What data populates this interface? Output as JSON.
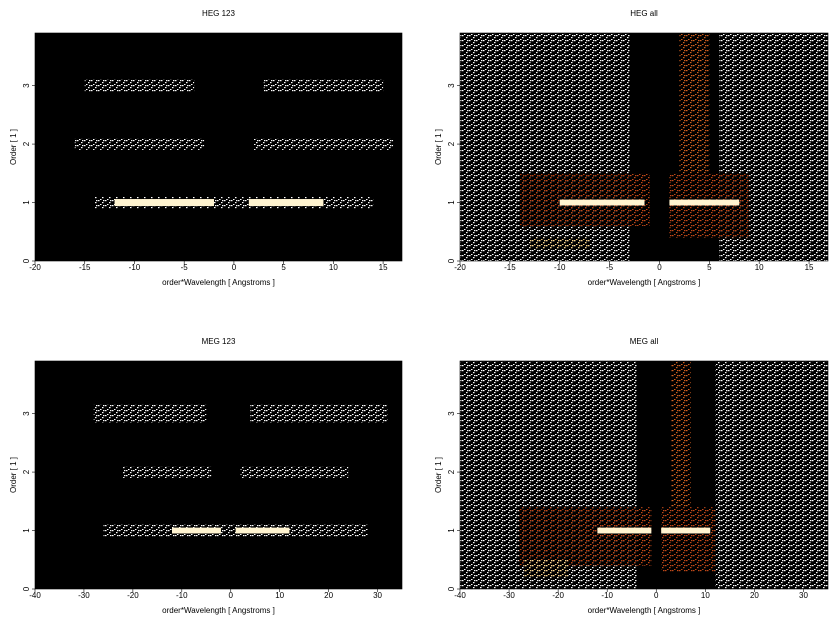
{
  "chart_data": [
    {
      "type": "density",
      "title": "HEG 123",
      "xlabel": "order*Wavelength [ Angstroms ]",
      "ylabel": "Order [ 1 ]",
      "xlim": [
        -20,
        16.9
      ],
      "xticks": [
        -20,
        -15,
        -10,
        -5,
        0,
        5,
        10,
        15
      ],
      "ylim": [
        0,
        3.9
      ],
      "yticks": [
        0,
        1,
        2,
        3
      ],
      "segments": [
        {
          "x": [
            -15,
            -4
          ],
          "y": [
            2.9,
            3.1
          ],
          "color": "#ffffff",
          "fill": "dots"
        },
        {
          "x": [
            3,
            15
          ],
          "y": [
            2.9,
            3.1
          ],
          "color": "#ffffff",
          "fill": "dots"
        },
        {
          "x": [
            -16,
            -3
          ],
          "y": [
            1.9,
            2.1
          ],
          "color": "#ffffff",
          "fill": "dots"
        },
        {
          "x": [
            2,
            16
          ],
          "y": [
            1.9,
            2.1
          ],
          "color": "#ffffff",
          "fill": "dots"
        },
        {
          "x": [
            -14,
            14
          ],
          "y": [
            0.9,
            1.1
          ],
          "color": "#ffffff",
          "fill": "dots"
        },
        {
          "x": [
            -12,
            -2
          ],
          "y": [
            0.94,
            1.06
          ],
          "color": "#fff4d0",
          "fill": "solid"
        },
        {
          "x": [
            1.5,
            9
          ],
          "y": [
            0.94,
            1.06
          ],
          "color": "#fff4d0",
          "fill": "solid"
        }
      ]
    },
    {
      "type": "density",
      "title": "HEG all",
      "xlabel": "order*Wavelength [ Angstroms ]",
      "ylabel": "Order [ 1 ]",
      "xlim": [
        -20,
        16.9
      ],
      "xticks": [
        -20,
        -15,
        -10,
        -5,
        0,
        5,
        10,
        15
      ],
      "ylim": [
        0,
        3.9
      ],
      "yticks": [
        0,
        1,
        2,
        3
      ],
      "segments": [
        {
          "x": [
            -20,
            -3
          ],
          "y": [
            0,
            3.9
          ],
          "color": "#ffffff",
          "fill": "dots"
        },
        {
          "x": [
            6,
            16.9
          ],
          "y": [
            0,
            3.9
          ],
          "color": "#ffffff",
          "fill": "dots"
        },
        {
          "x": [
            -14,
            -1
          ],
          "y": [
            0.6,
            1.5
          ],
          "color": "#c04818",
          "fill": "dots"
        },
        {
          "x": [
            1,
            9
          ],
          "y": [
            0.4,
            1.5
          ],
          "color": "#c04818",
          "fill": "dots"
        },
        {
          "x": [
            2,
            5
          ],
          "y": [
            1.5,
            3.9
          ],
          "color": "#d06020",
          "fill": "dots"
        },
        {
          "x": [
            -13,
            -7
          ],
          "y": [
            0.2,
            0.4
          ],
          "color": "#ffd890",
          "fill": "dots"
        },
        {
          "x": [
            -10,
            -1.5
          ],
          "y": [
            0.95,
            1.05
          ],
          "color": "#fff4d0",
          "fill": "solid"
        },
        {
          "x": [
            1,
            8
          ],
          "y": [
            0.95,
            1.05
          ],
          "color": "#fff4d0",
          "fill": "solid"
        }
      ]
    },
    {
      "type": "density",
      "title": "MEG 123",
      "xlabel": "order*Wavelength [ Angstroms ]",
      "ylabel": "Order [ 1 ]",
      "xlim": [
        -40,
        35
      ],
      "xticks": [
        -40,
        -30,
        -20,
        -10,
        0,
        10,
        20,
        30
      ],
      "ylim": [
        0,
        3.9
      ],
      "yticks": [
        0,
        1,
        2,
        3
      ],
      "segments": [
        {
          "x": [
            -28,
            -5
          ],
          "y": [
            2.85,
            3.15
          ],
          "color": "#ffffff",
          "fill": "dots"
        },
        {
          "x": [
            4,
            32
          ],
          "y": [
            2.85,
            3.15
          ],
          "color": "#ffffff",
          "fill": "dots"
        },
        {
          "x": [
            -22,
            -4
          ],
          "y": [
            1.9,
            2.1
          ],
          "color": "#ffffff",
          "fill": "dots"
        },
        {
          "x": [
            2,
            24
          ],
          "y": [
            1.9,
            2.1
          ],
          "color": "#ffffff",
          "fill": "dots"
        },
        {
          "x": [
            -26,
            28
          ],
          "y": [
            0.9,
            1.1
          ],
          "color": "#ffffff",
          "fill": "dots"
        },
        {
          "x": [
            -12,
            -2
          ],
          "y": [
            0.95,
            1.05
          ],
          "color": "#fff4d0",
          "fill": "solid"
        },
        {
          "x": [
            1,
            12
          ],
          "y": [
            0.95,
            1.05
          ],
          "color": "#fff4d0",
          "fill": "solid"
        }
      ]
    },
    {
      "type": "density",
      "title": "MEG all",
      "xlabel": "order*Wavelength [ Angstroms ]",
      "ylabel": "Order [ 1 ]",
      "xlim": [
        -40,
        35
      ],
      "xticks": [
        -40,
        -30,
        -20,
        -10,
        0,
        10,
        20,
        30
      ],
      "ylim": [
        0,
        3.9
      ],
      "yticks": [
        0,
        1,
        2,
        3
      ],
      "segments": [
        {
          "x": [
            -40,
            -4
          ],
          "y": [
            0,
            3.9
          ],
          "color": "#ffffff",
          "fill": "dots"
        },
        {
          "x": [
            12,
            35
          ],
          "y": [
            0,
            3.9
          ],
          "color": "#ffffff",
          "fill": "dots"
        },
        {
          "x": [
            -28,
            -1
          ],
          "y": [
            0.4,
            1.4
          ],
          "color": "#c04818",
          "fill": "dots"
        },
        {
          "x": [
            1,
            12
          ],
          "y": [
            0.3,
            1.4
          ],
          "color": "#c04818",
          "fill": "dots"
        },
        {
          "x": [
            3,
            7
          ],
          "y": [
            1.4,
            3.9
          ],
          "color": "#d06020",
          "fill": "dots"
        },
        {
          "x": [
            -27,
            -18
          ],
          "y": [
            0.2,
            0.5
          ],
          "color": "#ffd890",
          "fill": "dots"
        },
        {
          "x": [
            -12,
            -1
          ],
          "y": [
            0.95,
            1.05
          ],
          "color": "#fff4d0",
          "fill": "solid"
        },
        {
          "x": [
            1,
            11
          ],
          "y": [
            0.95,
            1.05
          ],
          "color": "#fff4d0",
          "fill": "solid"
        }
      ]
    }
  ]
}
